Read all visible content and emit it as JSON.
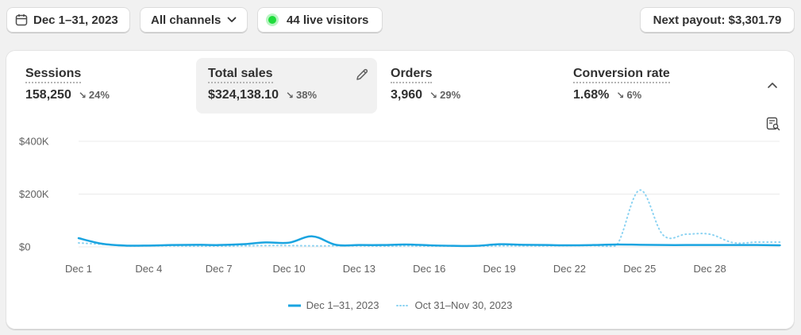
{
  "toolbar": {
    "date_range": "Dec 1–31, 2023",
    "channels": "All channels",
    "live_visitors": "44 live visitors",
    "payout": "Next payout: $3,301.79"
  },
  "metrics": [
    {
      "title": "Sessions",
      "value": "158,250",
      "arrow": "↘",
      "change": "24%",
      "active": false
    },
    {
      "title": "Total sales",
      "value": "$324,138.10",
      "arrow": "↘",
      "change": "38%",
      "active": true
    },
    {
      "title": "Orders",
      "value": "3,960",
      "arrow": "↘",
      "change": "29%",
      "active": false
    },
    {
      "title": "Conversion rate",
      "value": "1.68%",
      "arrow": "↘",
      "change": "6%",
      "active": false
    }
  ],
  "icons": [
    "calendar-icon",
    "chevron-down-icon",
    "live-dot-icon",
    "edit-icon",
    "chevron-up-icon",
    "explore-report-icon"
  ],
  "chart_data": {
    "type": "line",
    "x": [
      "Dec 1",
      "Dec 2",
      "Dec 3",
      "Dec 4",
      "Dec 5",
      "Dec 6",
      "Dec 7",
      "Dec 8",
      "Dec 9",
      "Dec 10",
      "Dec 11",
      "Dec 12",
      "Dec 13",
      "Dec 14",
      "Dec 15",
      "Dec 16",
      "Dec 17",
      "Dec 18",
      "Dec 19",
      "Dec 20",
      "Dec 21",
      "Dec 22",
      "Dec 23",
      "Dec 24",
      "Dec 25",
      "Dec 26",
      "Dec 27",
      "Dec 28",
      "Dec 29",
      "Dec 30",
      "Dec 31"
    ],
    "x_tick_labels": [
      "Dec 1",
      "Dec 4",
      "Dec 7",
      "Dec 10",
      "Dec 13",
      "Dec 16",
      "Dec 19",
      "Dec 22",
      "Dec 25",
      "Dec 28"
    ],
    "y_tick_labels": [
      "$400K",
      "$200K",
      "$0"
    ],
    "y_ticks": [
      400000,
      200000,
      0
    ],
    "ylim": [
      0,
      400000
    ],
    "grid": true,
    "legend_position": "bottom",
    "series": [
      {
        "name": "Dec 1–31, 2023",
        "style": "solid",
        "color": "#1aa4e0",
        "values": [
          33000,
          12000,
          5000,
          5000,
          7000,
          8000,
          7000,
          10000,
          17000,
          16000,
          40000,
          8000,
          7000,
          7000,
          9000,
          6000,
          4000,
          4000,
          10000,
          8000,
          7000,
          6000,
          7000,
          9000,
          8000,
          7000,
          7000,
          7000,
          7000,
          7000,
          6000
        ]
      },
      {
        "name": "Oct 31–Nov 30, 2023",
        "style": "dotted",
        "color": "#8cd3f2",
        "values": [
          15000,
          10000,
          4000,
          4000,
          4000,
          3000,
          3000,
          4000,
          5000,
          5000,
          4000,
          4000,
          4000,
          3000,
          4000,
          3000,
          3000,
          3000,
          4000,
          4000,
          4000,
          5000,
          5000,
          4000,
          215000,
          45000,
          48000,
          48000,
          16000,
          18000,
          18000
        ]
      }
    ]
  }
}
